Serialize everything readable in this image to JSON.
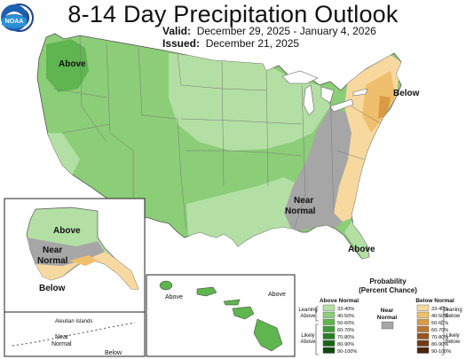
{
  "title": "8-14 Day Precipitation Outlook",
  "valid_label": "Valid:",
  "valid_range": "December 29, 2025 - January 4, 2026",
  "issued_label": "Issued:",
  "issued_date": "December 21, 2025",
  "logos": {
    "left": "NWS Climate Prediction Center seal",
    "right": "NOAA",
    "right_text": "NOAA"
  },
  "map_labels": {
    "above_nw": "Above",
    "below_ne": "Below",
    "near_normal_1": "Near",
    "near_normal_2": "Normal",
    "above_fl": "Above",
    "ak_above": "Above",
    "ak_near_1": "Near",
    "ak_near_2": "Normal",
    "ak_below": "Below",
    "aleutian_title": "Aleutian Islands",
    "aleutian_near_1": "Near",
    "aleutian_near_2": "Normal",
    "aleutian_below": "Below",
    "hi_above_1": "Above",
    "hi_above_2": "Above"
  },
  "legend": {
    "title_1": "Probability",
    "title_2": "(Percent Chance)",
    "above_header": "Above Normal",
    "below_header": "Below Normal",
    "near_header_1": "Near",
    "near_header_2": "Normal",
    "leaning_above_1": "Leaning",
    "leaning_above_2": "Above",
    "likely_above_1": "Likely",
    "likely_above_2": "Above",
    "leaning_below_1": "Leaning",
    "leaning_below_2": "Below",
    "likely_below_1": "Likely",
    "likely_below_2": "Below",
    "above_bins": [
      "33-40%",
      "40-50%",
      "50-60%",
      "60-70%",
      "70-80%",
      "80-90%",
      "90-100%"
    ],
    "below_bins": [
      "33-40%",
      "40-50%",
      "50-60%",
      "60-70%",
      "70-80%",
      "80-90%",
      "90-100%"
    ],
    "above_colors": [
      "#b3dfa4",
      "#8ccd78",
      "#5fb54f",
      "#3e9a35",
      "#2a7f22",
      "#1b6416",
      "#0e4a0c"
    ],
    "below_colors": [
      "#f7d9a0",
      "#efbf6d",
      "#d99a45",
      "#b9762e",
      "#945420",
      "#6f3b16",
      "#4b260c"
    ],
    "near_color": "#a6a6a6"
  },
  "colors": {
    "above_33": "#b3dfa4",
    "above_40": "#8ccd78",
    "above_50": "#5fb54f",
    "below_33": "#f7d9a0",
    "below_40": "#efbf6d",
    "below_50": "#d99a45",
    "near": "#a6a6a6",
    "ocean": "#ffffff"
  }
}
